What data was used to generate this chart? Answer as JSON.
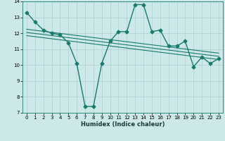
{
  "xlabel": "Humidex (Indice chaleur)",
  "x_data": [
    0,
    1,
    2,
    3,
    4,
    5,
    6,
    7,
    8,
    9,
    10,
    11,
    12,
    13,
    14,
    15,
    16,
    17,
    18,
    19,
    20,
    21,
    22,
    23
  ],
  "y_main": [
    13.3,
    12.7,
    12.2,
    12.0,
    11.9,
    11.4,
    10.1,
    7.4,
    7.4,
    10.1,
    11.5,
    12.1,
    12.1,
    13.8,
    13.8,
    12.1,
    12.2,
    11.2,
    11.2,
    11.5,
    9.9,
    10.5,
    10.1,
    10.4
  ],
  "trend_lines": [
    [
      [
        0,
        23
      ],
      [
        12.25,
        10.75
      ]
    ],
    [
      [
        0,
        23
      ],
      [
        12.05,
        10.55
      ]
    ],
    [
      [
        0,
        23
      ],
      [
        11.85,
        10.35
      ]
    ]
  ],
  "ylim": [
    7,
    14
  ],
  "xlim": [
    -0.5,
    23.5
  ],
  "yticks": [
    7,
    8,
    9,
    10,
    11,
    12,
    13,
    14
  ],
  "xticks": [
    0,
    1,
    2,
    3,
    4,
    5,
    6,
    7,
    8,
    9,
    10,
    11,
    12,
    13,
    14,
    15,
    16,
    17,
    18,
    19,
    20,
    21,
    22,
    23
  ],
  "line_color": "#1a7a6e",
  "bg_color": "#cce8e8",
  "grid_color": "#aad0d0",
  "xlabel_fontsize": 6,
  "tick_fontsize": 5
}
